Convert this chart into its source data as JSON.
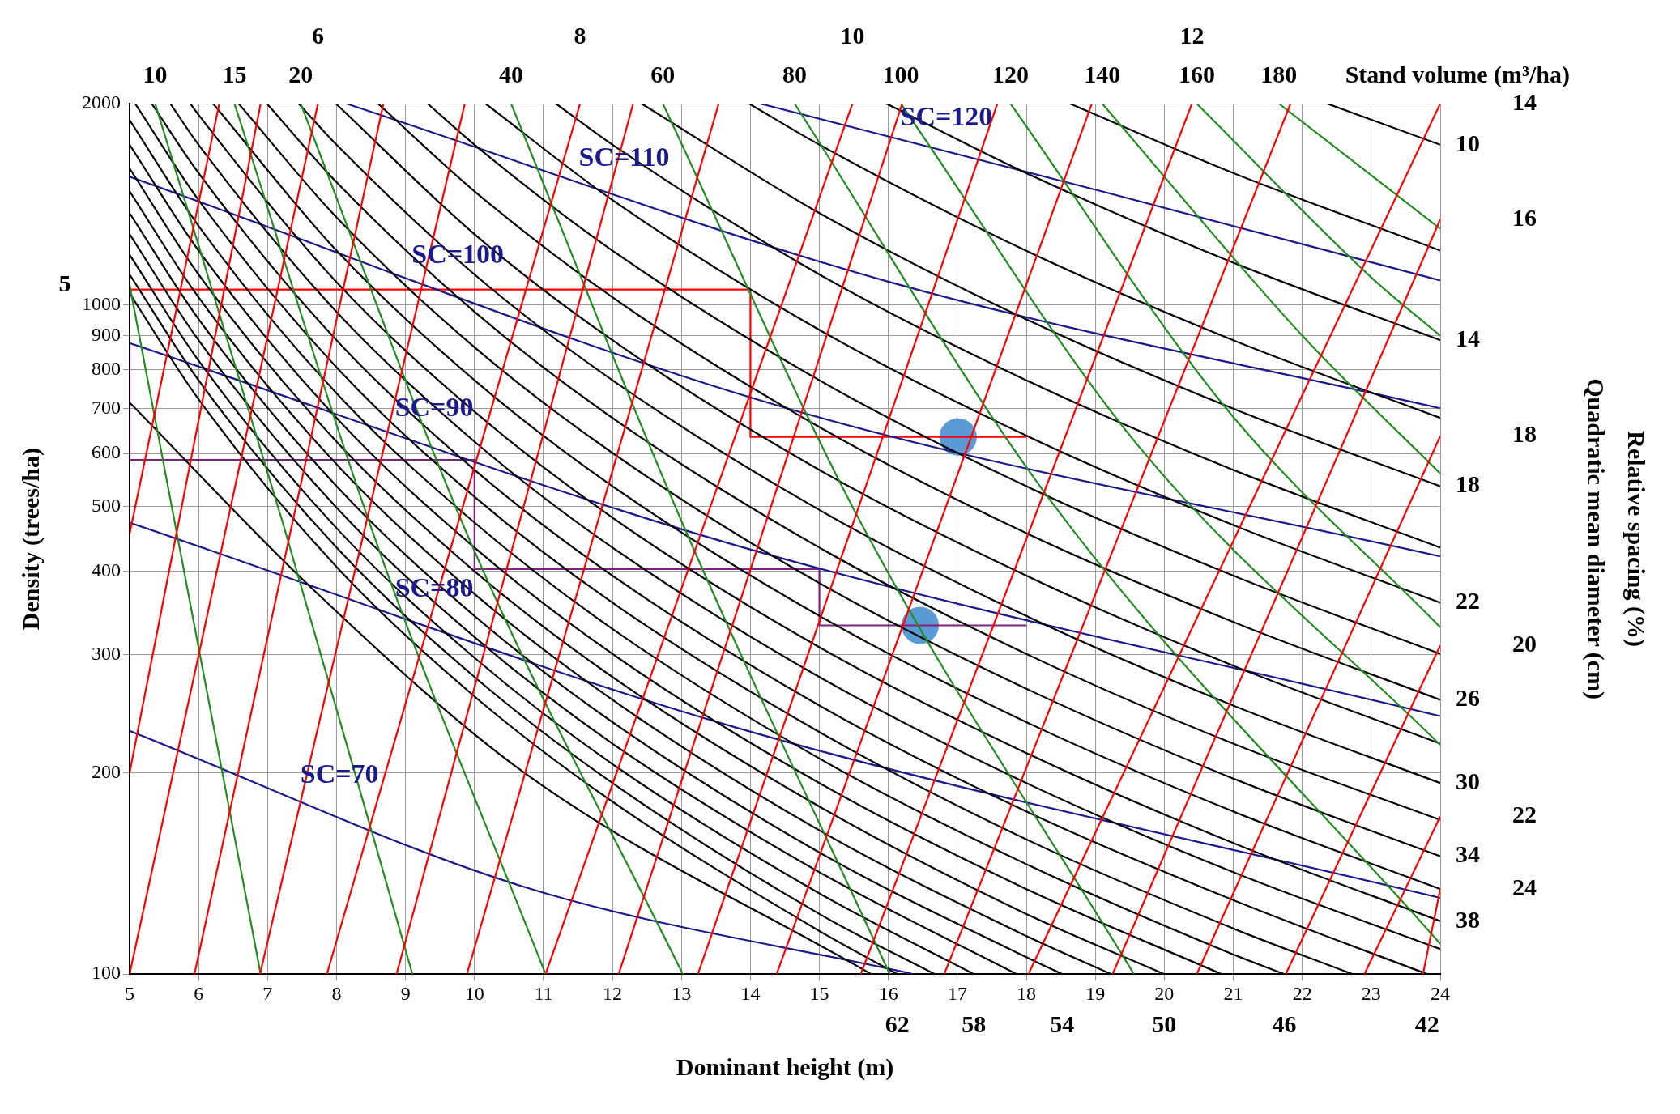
{
  "chart_data": {
    "type": "line",
    "xlabel": "Dominant height (m)",
    "ylabel": "Density (trees/ha)",
    "annotations": [
      "Stand volume (m³/ha)",
      "Quadratic mean diameter (cm)",
      "Relative spacing (%)",
      {
        "text": "10",
        "x": 5.37,
        "y": 2000
      },
      {
        "text": "15",
        "x": 6.52,
        "y": 2000
      },
      {
        "text": "20",
        "x": 7.48,
        "y": 2000
      },
      {
        "text": "40",
        "x": 10.53,
        "y": 2000
      },
      {
        "text": "60",
        "x": 12.73,
        "y": 2000
      },
      {
        "text": "80",
        "x": 14.64,
        "y": 2000
      },
      {
        "text": "100",
        "x": 16.18,
        "y": 2000
      },
      {
        "text": "120",
        "x": 17.77,
        "y": 2000
      },
      {
        "text": "140",
        "x": 19.1,
        "y": 2000
      },
      {
        "text": "160",
        "x": 20.47,
        "y": 2000
      },
      {
        "text": "180",
        "x": 21.66,
        "y": 2000
      },
      {
        "text": "6",
        "x": 7.73,
        "y": 2000
      },
      {
        "text": "8",
        "x": 11.53,
        "y": 2000
      },
      {
        "text": "10",
        "x": 15.48,
        "y": 2000
      },
      {
        "text": "12",
        "x": 20.4,
        "y": 2000
      },
      {
        "text": "10",
        "x": 24,
        "y": 1736
      },
      {
        "text": "14",
        "x": 24,
        "y": 886
      },
      {
        "text": "18",
        "x": 24,
        "y": 536
      },
      {
        "text": "22",
        "x": 24,
        "y": 359
      },
      {
        "text": "26",
        "x": 24,
        "y": 257
      },
      {
        "text": "30",
        "x": 24,
        "y": 193
      },
      {
        "text": "34",
        "x": 24,
        "y": 150
      },
      {
        "text": "38",
        "x": 24,
        "y": 120
      },
      {
        "text": "14",
        "x": 24,
        "y": 2000
      },
      {
        "text": "16",
        "x": 24,
        "y": 1343
      },
      {
        "text": "18",
        "x": 24,
        "y": 637
      },
      {
        "text": "20",
        "x": 24,
        "y": 310
      },
      {
        "text": "22",
        "x": 24,
        "y": 172
      },
      {
        "text": "24",
        "x": 24,
        "y": 134
      },
      {
        "text": "62",
        "x": 16.13,
        "y": 100
      },
      {
        "text": "58",
        "x": 17.24,
        "y": 100
      },
      {
        "text": "54",
        "x": 18.52,
        "y": 100
      },
      {
        "text": "50",
        "x": 20,
        "y": 100
      },
      {
        "text": "46",
        "x": 21.74,
        "y": 100
      },
      {
        "text": "42",
        "x": 23.81,
        "y": 100
      },
      {
        "text": "5",
        "x": 5,
        "y": 1072
      }
    ],
    "log": "y",
    "grid": true,
    "legend": false,
    "marker": "none",
    "line_style": "solid",
    "xlim": [
      5,
      24
    ],
    "xticks": [
      5,
      6,
      7,
      8,
      9,
      10,
      11,
      12,
      13,
      14,
      15,
      16,
      17,
      18,
      19,
      20,
      21,
      22,
      23,
      24
    ],
    "ylim": [
      100,
      2000
    ],
    "yticks": [
      100,
      200,
      300,
      400,
      500,
      600,
      700,
      800,
      900,
      1000,
      2000
    ],
    "series": [
      {
        "type": "line",
        "color": "#ff0000",
        "x": [
          5,
          7.73
        ],
        "values": [
          100,
          2000
        ]
      },
      {
        "type": "line",
        "color": "#ff0000",
        "x": [
          5,
          6.9
        ],
        "values": [
          200,
          2000
        ]
      },
      {
        "type": "line",
        "color": "#ff0000",
        "x": [
          5,
          6.3
        ],
        "values": [
          455,
          2000
        ]
      },
      {
        "type": "line",
        "color": "#ff0000",
        "x": [
          5.94,
          8.68
        ],
        "values": [
          100,
          2000
        ]
      },
      {
        "type": "line",
        "color": "#ff0000",
        "x": [
          6.89,
          9.86
        ],
        "values": [
          100,
          2000
        ]
      },
      {
        "type": "line",
        "color": "#ff0000",
        "x": [
          7.86,
          11.53
        ],
        "values": [
          100,
          2000
        ]
      },
      {
        "type": "line",
        "color": "#ff0000",
        "x": [
          8.87,
          12.3
        ],
        "values": [
          100,
          2000
        ]
      },
      {
        "type": "line",
        "color": "#ff0000",
        "x": [
          9.89,
          13.54
        ],
        "values": [
          100,
          2000
        ]
      },
      {
        "type": "line",
        "color": "#ff0000",
        "x": [
          11.03,
          15.48
        ],
        "values": [
          100,
          2000
        ]
      },
      {
        "type": "line",
        "color": "#ff0000",
        "x": [
          12.09,
          16.2
        ],
        "values": [
          100,
          2000
        ]
      },
      {
        "type": "line",
        "color": "#ff0000",
        "x": [
          13.24,
          17.58
        ],
        "values": [
          100,
          2000
        ]
      },
      {
        "type": "line",
        "color": "#ff0000",
        "x": [
          14.38,
          18.95
        ],
        "values": [
          100,
          2000
        ]
      },
      {
        "type": "line",
        "color": "#ff0000",
        "x": [
          15.6,
          20.4
        ],
        "values": [
          100,
          2000
        ]
      },
      {
        "type": "line",
        "color": "#ff0000",
        "x": [
          16.81,
          21.83
        ],
        "values": [
          100,
          2000
        ]
      },
      {
        "type": "line",
        "color": "#ff0000",
        "x": [
          18.03,
          24
        ],
        "values": [
          100,
          2000
        ]
      },
      {
        "type": "line",
        "color": "#ff0000",
        "x": [
          19.25,
          24
        ],
        "values": [
          100,
          1343
        ]
      },
      {
        "type": "line",
        "color": "#ff0000",
        "x": [
          20.47,
          24
        ],
        "values": [
          100,
          637
        ]
      },
      {
        "type": "line",
        "color": "#ff0000",
        "x": [
          21.76,
          24
        ],
        "values": [
          100,
          310
        ]
      },
      {
        "type": "line",
        "color": "#ff0000",
        "x": [
          22.9,
          24
        ],
        "values": [
          100,
          172
        ]
      },
      {
        "type": "line",
        "color": "#ff0000",
        "x": [
          23.75,
          24
        ],
        "values": [
          100,
          134
        ]
      },
      {
        "type": "line",
        "color": "#228b22",
        "x": [
          5,
          6.9
        ],
        "values": [
          1072,
          100
        ]
      },
      {
        "type": "line",
        "color": "#228b22",
        "x": [
          5.37,
          7.22,
          9.1
        ],
        "values": [
          2000,
          473,
          100
        ]
      },
      {
        "type": "line",
        "color": "#228b22",
        "x": [
          6.52,
          8.59,
          11.03
        ],
        "values": [
          2000,
          438,
          100
        ]
      },
      {
        "type": "line",
        "color": "#228b22",
        "x": [
          7.48,
          9.96,
          13.02
        ],
        "values": [
          2000,
          438,
          100
        ]
      },
      {
        "type": "line",
        "color": "#228b22",
        "x": [
          10.53,
          13.01,
          16.02
        ],
        "values": [
          2000,
          473,
          100
        ]
      },
      {
        "type": "line",
        "color": "#228b22",
        "x": [
          12.73,
          15.6,
          19.56
        ],
        "values": [
          2000,
          473,
          100
        ]
      },
      {
        "type": "line",
        "color": "#228b22",
        "x": [
          14.64,
          18.34,
          24
        ],
        "values": [
          2000,
          512,
          111
        ]
      },
      {
        "type": "line",
        "color": "#228b22",
        "x": [
          16.18,
          19.6,
          24
        ],
        "values": [
          2000,
          620,
          220
        ]
      },
      {
        "type": "line",
        "color": "#228b22",
        "x": [
          17.77,
          20.9,
          24
        ],
        "values": [
          2000,
          700,
          330
        ]
      },
      {
        "type": "line",
        "color": "#228b22",
        "x": [
          19.1,
          22,
          24
        ],
        "values": [
          2000,
          900,
          560
        ]
      },
      {
        "type": "line",
        "color": "#228b22",
        "x": [
          20.47,
          23,
          24
        ],
        "values": [
          2000,
          1100,
          900
        ]
      },
      {
        "type": "line",
        "color": "#228b22",
        "x": [
          21.66,
          24
        ],
        "values": [
          2000,
          1300
        ]
      },
      {
        "type": "line",
        "color": "#000000",
        "x": [
          22.36,
          24
        ],
        "values": [
          2000,
          1736
        ]
      },
      {
        "type": "line",
        "color": "#000000",
        "x": [
          18.63,
          21,
          24
        ],
        "values": [
          2000,
          1575,
          1206
        ]
      },
      {
        "type": "line",
        "color": "#000000",
        "x": [
          15.97,
          18,
          21,
          24
        ],
        "values": [
          2000,
          1574,
          1157,
          886
        ]
      },
      {
        "type": "line",
        "color": "#000000",
        "x": [
          13.98,
          15,
          18,
          21,
          24
        ],
        "values": [
          2000,
          1736,
          1205,
          886,
          678
        ]
      },
      {
        "type": "line",
        "color": "#000000",
        "x": [
          12.42,
          15,
          18,
          21,
          24
        ],
        "values": [
          2000,
          1372,
          952,
          700,
          536
        ]
      },
      {
        "type": "line",
        "color": "#000000",
        "x": [
          11.18,
          12,
          15,
          18,
          21,
          24
        ],
        "values": [
          2000,
          1736,
          1111,
          772,
          567,
          434
        ]
      },
      {
        "type": "line",
        "color": "#000000",
        "x": [
          10.16,
          12,
          15,
          18,
          21,
          24
        ],
        "values": [
          2000,
          1435,
          918,
          638,
          469,
          359
        ]
      },
      {
        "type": "line",
        "color": "#000000",
        "x": [
          9.32,
          10,
          12,
          15,
          18,
          21,
          24
        ],
        "values": [
          2000,
          1736,
          1206,
          772,
          536,
          394,
          301
        ]
      },
      {
        "type": "line",
        "color": "#000000",
        "x": [
          8.6,
          10,
          12,
          15,
          18,
          21,
          24
        ],
        "values": [
          2000,
          1479,
          1027,
          657,
          456,
          336,
          257
        ]
      },
      {
        "type": "line",
        "color": "#000000",
        "x": [
          7.99,
          10,
          12,
          15,
          18,
          21,
          24
        ],
        "values": [
          2000,
          1276,
          886,
          567,
          394,
          289,
          221
        ]
      },
      {
        "type": "line",
        "color": "#000000",
        "x": [
          7.45,
          8,
          10,
          12,
          15,
          18,
          21,
          24
        ],
        "values": [
          2000,
          1736,
          1111,
          772,
          494,
          343,
          252,
          193
        ]
      },
      {
        "type": "line",
        "color": "#000000",
        "x": [
          6.99,
          8,
          10,
          12,
          15,
          18,
          21,
          24
        ],
        "values": [
          2000,
          1526,
          977,
          678,
          434,
          301,
          221,
          170
        ]
      },
      {
        "type": "line",
        "color": "#000000",
        "x": [
          6.58,
          8,
          10,
          12,
          15,
          18,
          21,
          24
        ],
        "values": [
          2000,
          1352,
          865,
          601,
          384,
          267,
          196,
          150
        ]
      },
      {
        "type": "line",
        "color": "#000000",
        "x": [
          6.21,
          8,
          10,
          12,
          15,
          18,
          21,
          24
        ],
        "values": [
          2000,
          1206,
          772,
          536,
          343,
          238,
          175,
          134
        ]
      },
      {
        "type": "line",
        "color": "#000000",
        "x": [
          5.88,
          6,
          8,
          10,
          12,
          15,
          18,
          21,
          24
        ],
        "values": [
          2000,
          1924,
          1082,
          693,
          481,
          308,
          214,
          157,
          120
        ]
      },
      {
        "type": "line",
        "color": "#000000",
        "x": [
          5.59,
          6,
          8,
          10,
          12,
          15,
          18,
          21,
          24
        ],
        "values": [
          2000,
          1736,
          977,
          625,
          434,
          278,
          193,
          142,
          109
        ]
      },
      {
        "type": "line",
        "color": "#000000",
        "x": [
          5.32,
          6,
          8,
          10,
          12,
          15,
          18,
          21,
          23.81
        ],
        "values": [
          2000,
          1575,
          886,
          567,
          394,
          252,
          175,
          129,
          100
        ]
      },
      {
        "type": "line",
        "color": "#000000",
        "x": [
          5.08,
          6,
          8,
          10,
          12,
          15,
          18,
          21,
          22.73
        ],
        "values": [
          2000,
          1435,
          807,
          517,
          359,
          230,
          159,
          117,
          100
        ]
      },
      {
        "type": "line",
        "color": "#000000",
        "x": [
          5,
          6,
          8,
          10,
          12,
          15,
          18,
          21,
          21.74
        ],
        "values": [
          1890,
          1313,
          738,
          473,
          328,
          210,
          146,
          107,
          100
        ]
      },
      {
        "type": "line",
        "color": "#000000",
        "x": [
          5,
          6,
          8,
          10,
          12,
          15,
          18,
          20.83
        ],
        "values": [
          1736,
          1206,
          678,
          434,
          301,
          193,
          134,
          100
        ]
      },
      {
        "type": "line",
        "color": "#000000",
        "x": [
          5,
          6,
          8,
          10,
          12,
          15,
          18,
          20
        ],
        "values": [
          1600,
          1111,
          625,
          400,
          278,
          178,
          123,
          100
        ]
      },
      {
        "type": "line",
        "color": "#000000",
        "x": [
          5,
          6,
          8,
          10,
          12,
          15,
          18,
          19.23
        ],
        "values": [
          1479,
          1027,
          578,
          370,
          257,
          164,
          114,
          100
        ]
      },
      {
        "type": "line",
        "color": "#000000",
        "x": [
          5,
          6,
          8,
          10,
          12,
          15,
          18,
          18.52
        ],
        "values": [
          1372,
          953,
          536,
          343,
          238,
          152,
          106,
          100
        ]
      },
      {
        "type": "line",
        "color": "#000000",
        "x": [
          5,
          6,
          8,
          10,
          12,
          15,
          17.86
        ],
        "values": [
          1276,
          886,
          498,
          319,
          221,
          142,
          100
        ]
      },
      {
        "type": "line",
        "color": "#000000",
        "x": [
          5,
          6,
          8,
          10,
          12,
          15,
          17.24
        ],
        "values": [
          1189,
          826,
          464,
          297,
          206,
          132,
          100
        ]
      },
      {
        "type": "line",
        "color": "#000000",
        "x": [
          5,
          6,
          8,
          10,
          12,
          15,
          16.67
        ],
        "values": [
          1111,
          772,
          434,
          278,
          193,
          123,
          100
        ]
      },
      {
        "type": "line",
        "color": "#000000",
        "x": [
          5,
          6,
          8,
          10,
          12,
          15,
          16.13
        ],
        "values": [
          1041,
          723,
          406,
          260,
          181,
          116,
          100
        ]
      },
      {
        "type": "line",
        "color": "#000000",
        "x": [
          5,
          7.68,
          10.72,
          15.75
        ],
        "values": [
          715,
          374,
          200,
          100
        ]
      },
      {
        "type": "line",
        "color": "#1a1a8c",
        "name": "SC=120",
        "x": [
          14.14,
          19.1,
          24
        ],
        "values": [
          2000,
          1478,
          1088
        ]
      },
      {
        "type": "line",
        "color": "#1a1a8c",
        "name": "SC=110",
        "x": [
          8.14,
          16.05,
          24
        ],
        "values": [
          2000,
          1080,
          701
        ]
      },
      {
        "type": "line",
        "color": "#1a1a8c",
        "name": "SC=100",
        "x": [
          5,
          14.53,
          24
        ],
        "values": [
          1555,
          701,
          421
        ]
      },
      {
        "type": "line",
        "color": "#1a1a8c",
        "name": "SC=90",
        "x": [
          5,
          13.77,
          24
        ],
        "values": [
          877,
          438,
          243
        ]
      },
      {
        "type": "line",
        "color": "#1a1a8c",
        "name": "SC=80",
        "x": [
          5,
          13.77,
          24
        ],
        "values": [
          473,
          234,
          130
        ]
      },
      {
        "type": "line",
        "color": "#1a1a8c",
        "name": "SC=70",
        "x": [
          5,
          10.72,
          16.36
        ],
        "values": [
          231,
          135,
          100
        ]
      },
      {
        "type": "line",
        "color": "#ff0000",
        "x": [
          5,
          14,
          14,
          18
        ],
        "values": [
          1055,
          1055,
          635,
          635
        ]
      },
      {
        "type": "line",
        "color": "#7f1f7f",
        "x": [
          5,
          5,
          10,
          10,
          15,
          15,
          18
        ],
        "values": [
          877,
          587,
          587,
          403,
          403,
          332,
          332
        ]
      },
      {
        "type": "scatter",
        "color": "#5b9bd5",
        "marker": "circle",
        "x": [
          17.01,
          16.46
        ],
        "values": [
          635,
          332
        ]
      }
    ]
  }
}
